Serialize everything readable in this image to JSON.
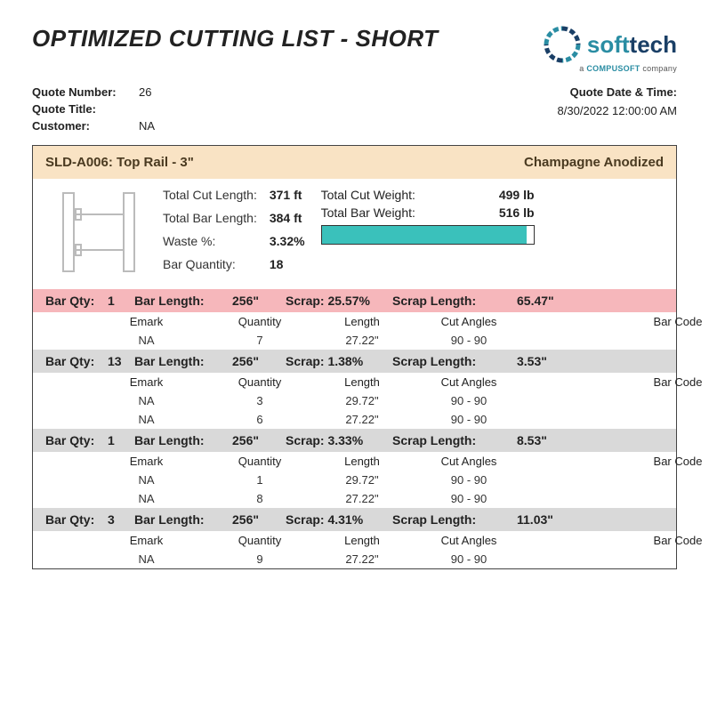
{
  "title": "OPTIMIZED CUTTING LIST - SHORT",
  "logo": {
    "soft": "soft",
    "tech": "tech",
    "sub_a": "a ",
    "sub_b": "COMPUSOFT",
    "sub_c": " company"
  },
  "meta": {
    "quote_number_label": "Quote Number:",
    "quote_number": "26",
    "quote_title_label": "Quote Title:",
    "quote_title": "",
    "customer_label": "Customer:",
    "customer": "NA",
    "date_label": "Quote Date & Time:",
    "date_value": "8/30/2022 12:00:00 AM"
  },
  "header": {
    "part_code": "SLD-A006:  Top Rail - 3\"",
    "finish": "Champagne Anodized"
  },
  "summary": {
    "total_cut_length_label": "Total Cut Length:",
    "total_cut_length": "371 ft",
    "total_bar_length_label": "Total Bar Length:",
    "total_bar_length": "384 ft",
    "waste_label": "Waste %:",
    "waste": "3.32%",
    "bar_qty_label": "Bar Quantity:",
    "bar_qty": "18",
    "total_cut_weight_label": "Total Cut Weight:",
    "total_cut_weight": "499 lb",
    "total_bar_weight_label": "Total Bar Weight:",
    "total_bar_weight": "516 lb",
    "progress_pct": 96.7,
    "progress_color": "#3ac1bb"
  },
  "col_headers": {
    "emark": "Emark",
    "quantity": "Quantity",
    "length": "Length",
    "cut_angles": "Cut Angles",
    "bar_code": "Bar Code"
  },
  "bar_labels": {
    "bar_qty": "Bar Qty:",
    "bar_length": "Bar Length:",
    "scrap": "Scrap:",
    "scrap_length": "Scrap Length:"
  },
  "bars": [
    {
      "style": "pink",
      "qty": "1",
      "length": "256\"",
      "scrap": "25.57%",
      "scrap_length": "65.47\"",
      "length_hdr_override": "Length",
      "cuts": [
        {
          "emark": "NA",
          "quantity": "7",
          "length": "27.22\"",
          "angles": "90 - 90",
          "barcode": ""
        }
      ]
    },
    {
      "style": "grey",
      "qty": "13",
      "length": "256\"",
      "scrap": "1.38%",
      "scrap_length": "3.53\"",
      "cuts": [
        {
          "emark": "NA",
          "quantity": "3",
          "length": "29.72\"",
          "angles": "90 - 90",
          "barcode": ""
        },
        {
          "emark": "NA",
          "quantity": "6",
          "length": "27.22\"",
          "angles": "90 - 90",
          "barcode": ""
        }
      ]
    },
    {
      "style": "grey",
      "qty": "1",
      "length": "256\"",
      "scrap": "3.33%",
      "scrap_length": "8.53\"",
      "cuts": [
        {
          "emark": "NA",
          "quantity": "1",
          "length": "29.72\"",
          "angles": "90 - 90",
          "barcode": ""
        },
        {
          "emark": "NA",
          "quantity": "8",
          "length": "27.22\"",
          "angles": "90 - 90",
          "barcode": ""
        }
      ]
    },
    {
      "style": "grey",
      "qty": "3",
      "length": "256\"",
      "scrap": "4.31%",
      "scrap_length": "11.03\"",
      "cuts": [
        {
          "emark": "NA",
          "quantity": "9",
          "length": "27.22\"",
          "angles": "90 - 90",
          "barcode": ""
        }
      ]
    }
  ],
  "colors": {
    "header_bg": "#f9e3c4",
    "pink_bg": "#f6b7bb",
    "grey_bg": "#d9d9d9"
  }
}
